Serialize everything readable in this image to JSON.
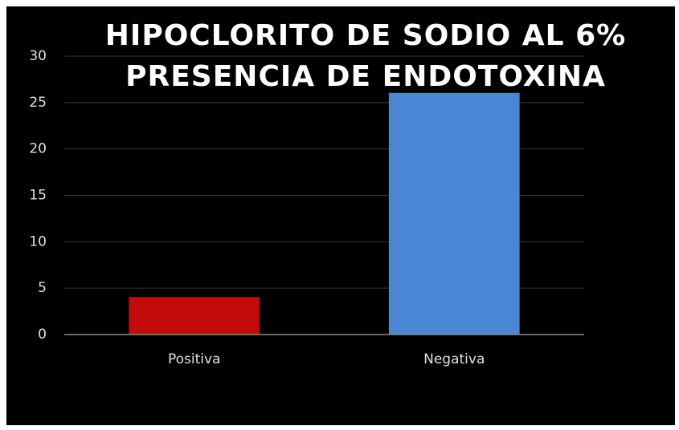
{
  "chart_data": {
    "type": "bar",
    "title": [
      "HIPOCLORITO DE SODIO AL 6%",
      "PRESENCIA DE ENDOTOXINA"
    ],
    "categories": [
      "Positiva",
      "Negativa"
    ],
    "values": [
      4,
      26
    ],
    "colors": [
      "#c40b0b",
      "#4a86d4"
    ],
    "ylim": [
      0,
      30
    ],
    "yticks": [
      0,
      5,
      10,
      15,
      20,
      25,
      30
    ],
    "grid": true
  }
}
